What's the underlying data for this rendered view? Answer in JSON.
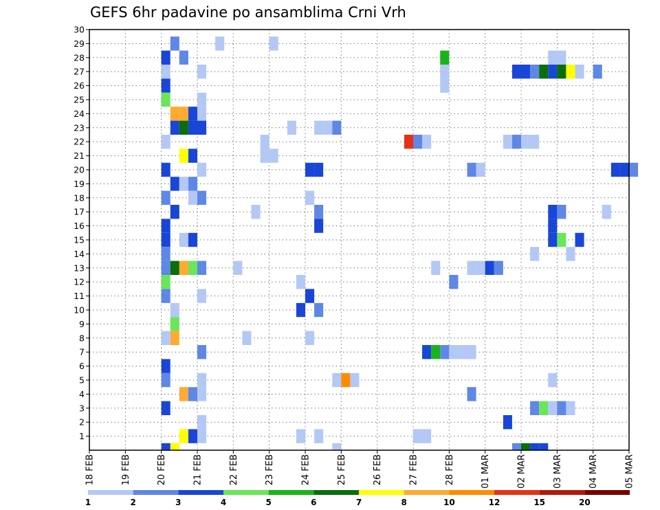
{
  "chart_data": {
    "type": "heatmap",
    "title": "GEFS 6hr padavine po ansamblima Crni Vrh",
    "xlabel": "",
    "ylabel": "",
    "x_ticks": [
      "18 FEB",
      "19 FEB",
      "20 FEB",
      "21 FEB",
      "22 FEB",
      "23 FEB",
      "24 FEB",
      "25 FEB",
      "26 FEB",
      "27 FEB",
      "28 FEB",
      "01 MAR",
      "02 MAR",
      "03 MAR",
      "04 MAR",
      "05 MAR"
    ],
    "x_range_days": [
      0,
      15
    ],
    "y_ticks": [
      1,
      2,
      3,
      4,
      5,
      6,
      7,
      8,
      9,
      10,
      11,
      12,
      13,
      14,
      15,
      16,
      17,
      18,
      19,
      20,
      21,
      22,
      23,
      24,
      25,
      26,
      27,
      28,
      29,
      30
    ],
    "y_range": [
      0,
      30
    ],
    "grid": true,
    "color_scale": {
      "colors": [
        "#b4c8f5",
        "#5f87e6",
        "#1946d7",
        "#69e659",
        "#19b419",
        "#0a6e0a",
        "#ffff00",
        "#ffaa32",
        "#ff8c00",
        "#e63214",
        "#b4190a",
        "#780000"
      ],
      "labels": [
        "1",
        "2",
        "3",
        "4",
        "5",
        "6",
        "7",
        "8",
        "10",
        "12",
        "15",
        "20"
      ]
    },
    "cells_note": "each cell: [day offset from 18 FEB (0.25 = 6 h step), ensemble member, colour class index]",
    "cells": [
      [
        2.25,
        29,
        1
      ],
      [
        2.0,
        28,
        2
      ],
      [
        2.5,
        28,
        1
      ],
      [
        2.0,
        27,
        0
      ],
      [
        2.0,
        26,
        2
      ],
      [
        2.0,
        25,
        3
      ],
      [
        2.25,
        24,
        7
      ],
      [
        2.5,
        24,
        7
      ],
      [
        2.75,
        24,
        2
      ],
      [
        2.25,
        23,
        2
      ],
      [
        2.5,
        23,
        5
      ],
      [
        2.75,
        23,
        2
      ],
      [
        2.0,
        22,
        0
      ],
      [
        2.5,
        21,
        6
      ],
      [
        2.75,
        21,
        2
      ],
      [
        2.0,
        20,
        2
      ],
      [
        2.25,
        19,
        2
      ],
      [
        2.5,
        19,
        0
      ],
      [
        2.75,
        19,
        1
      ],
      [
        2.0,
        18,
        1
      ],
      [
        2.75,
        18,
        0
      ],
      [
        2.25,
        17,
        2
      ],
      [
        2.0,
        16,
        2
      ],
      [
        2.0,
        15,
        2
      ],
      [
        2.5,
        15,
        0
      ],
      [
        2.75,
        15,
        2
      ],
      [
        2.0,
        14,
        1
      ],
      [
        2.0,
        13,
        1
      ],
      [
        2.25,
        13,
        5
      ],
      [
        2.5,
        13,
        7
      ],
      [
        2.75,
        13,
        3
      ],
      [
        2.0,
        12,
        3
      ],
      [
        2.0,
        11,
        1
      ],
      [
        2.25,
        10,
        0
      ],
      [
        2.25,
        9,
        3
      ],
      [
        2.0,
        8,
        0
      ],
      [
        2.25,
        8,
        7
      ],
      [
        2.0,
        6,
        2
      ],
      [
        2.0,
        5,
        1
      ],
      [
        2.5,
        4,
        7
      ],
      [
        2.75,
        4,
        1
      ],
      [
        2.0,
        3,
        2
      ],
      [
        2.5,
        1,
        6
      ],
      [
        2.75,
        1,
        2
      ],
      [
        2.25,
        0,
        6
      ],
      [
        2.0,
        0,
        2
      ],
      [
        3.0,
        27,
        0
      ],
      [
        3.0,
        25,
        0
      ],
      [
        3.0,
        24,
        0
      ],
      [
        3.0,
        23,
        2
      ],
      [
        3.0,
        20,
        0
      ],
      [
        3.0,
        18,
        1
      ],
      [
        3.0,
        13,
        1
      ],
      [
        3.0,
        11,
        0
      ],
      [
        3.0,
        7,
        1
      ],
      [
        3.0,
        5,
        0
      ],
      [
        3.0,
        4,
        0
      ],
      [
        3.0,
        2,
        0
      ],
      [
        3.0,
        1,
        0
      ],
      [
        3.5,
        29,
        0
      ],
      [
        4.25,
        8,
        0
      ],
      [
        5.0,
        29,
        0
      ],
      [
        4.75,
        22,
        0
      ],
      [
        4.75,
        21,
        0
      ],
      [
        4.5,
        17,
        0
      ],
      [
        5.0,
        21,
        0
      ],
      [
        4.0,
        13,
        0
      ],
      [
        5.75,
        12,
        0
      ],
      [
        5.75,
        10,
        2
      ],
      [
        5.5,
        23,
        0
      ],
      [
        6.25,
        23,
        0
      ],
      [
        6.5,
        23,
        0
      ],
      [
        6.25,
        16,
        2
      ],
      [
        6.25,
        20,
        2
      ],
      [
        6.25,
        10,
        1
      ],
      [
        6.25,
        17,
        1
      ],
      [
        6.25,
        1,
        0
      ],
      [
        6.0,
        8,
        0
      ],
      [
        6.0,
        18,
        0
      ],
      [
        5.75,
        1,
        0
      ],
      [
        6.0,
        11,
        2
      ],
      [
        6.0,
        20,
        2
      ],
      [
        6.75,
        23,
        1
      ],
      [
        6.75,
        0,
        0
      ],
      [
        6.75,
        5,
        0
      ],
      [
        7.0,
        5,
        8
      ],
      [
        7.25,
        5,
        0
      ],
      [
        8.75,
        22,
        9
      ],
      [
        9.0,
        22,
        1
      ],
      [
        9.25,
        22,
        0
      ],
      [
        9.25,
        7,
        2
      ],
      [
        9.5,
        7,
        4
      ],
      [
        9.75,
        7,
        1
      ],
      [
        10.0,
        7,
        0
      ],
      [
        10.25,
        7,
        0
      ],
      [
        10.5,
        7,
        0
      ],
      [
        9.0,
        1,
        0
      ],
      [
        9.25,
        1,
        0
      ],
      [
        9.5,
        13,
        0
      ],
      [
        9.75,
        28,
        4
      ],
      [
        9.75,
        27,
        0
      ],
      [
        9.75,
        26,
        0
      ],
      [
        10.0,
        12,
        1
      ],
      [
        10.5,
        20,
        1
      ],
      [
        10.75,
        20,
        0
      ],
      [
        10.5,
        13,
        0
      ],
      [
        10.75,
        13,
        0
      ],
      [
        11.0,
        13,
        2
      ],
      [
        11.25,
        13,
        1
      ],
      [
        10.5,
        4,
        1
      ],
      [
        11.5,
        2,
        2
      ],
      [
        11.5,
        22,
        0
      ],
      [
        11.75,
        22,
        1
      ],
      [
        12.0,
        22,
        0
      ],
      [
        12.25,
        22,
        0
      ],
      [
        11.75,
        0,
        1
      ],
      [
        12.0,
        0,
        5
      ],
      [
        12.25,
        0,
        2
      ],
      [
        12.5,
        0,
        2
      ],
      [
        11.75,
        27,
        2
      ],
      [
        12.0,
        27,
        2
      ],
      [
        12.25,
        27,
        1
      ],
      [
        12.5,
        27,
        5
      ],
      [
        12.75,
        27,
        2
      ],
      [
        13.0,
        27,
        5
      ],
      [
        13.25,
        27,
        6
      ],
      [
        13.5,
        27,
        0
      ],
      [
        14.0,
        27,
        1
      ],
      [
        12.25,
        14,
        0
      ],
      [
        12.25,
        3,
        1
      ],
      [
        12.5,
        3,
        3
      ],
      [
        12.75,
        3,
        0
      ],
      [
        13.0,
        3,
        1
      ],
      [
        13.25,
        3,
        0
      ],
      [
        12.75,
        28,
        0
      ],
      [
        13.0,
        28,
        0
      ],
      [
        12.75,
        16,
        2
      ],
      [
        12.75,
        17,
        2
      ],
      [
        13.0,
        17,
        1
      ],
      [
        12.75,
        15,
        2
      ],
      [
        13.0,
        15,
        3
      ],
      [
        12.75,
        5,
        0
      ],
      [
        13.25,
        14,
        0
      ],
      [
        13.5,
        15,
        2
      ],
      [
        14.25,
        17,
        0
      ],
      [
        14.5,
        20,
        2
      ],
      [
        14.75,
        20,
        2
      ],
      [
        15.0,
        20,
        1
      ]
    ]
  }
}
